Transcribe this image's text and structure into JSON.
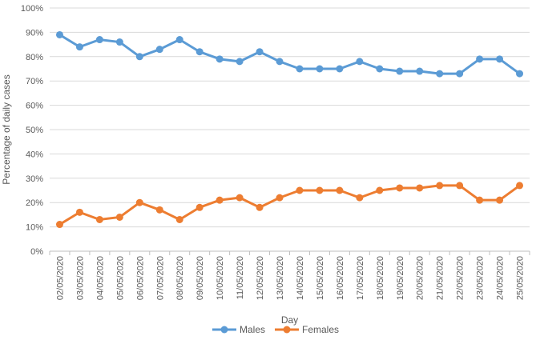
{
  "chart_data": {
    "type": "line",
    "title": "",
    "xlabel": "Day",
    "ylabel": "Percentage  of daily cases",
    "ylim": [
      0,
      100
    ],
    "y_ticks": [
      "0%",
      "10%",
      "20%",
      "30%",
      "40%",
      "50%",
      "60%",
      "70%",
      "80%",
      "90%",
      "100%"
    ],
    "grid": true,
    "legend_position": "bottom",
    "categories": [
      "02/05/2020",
      "03/05/2020",
      "04/05/2020",
      "05/05/2020",
      "06/05/2020",
      "07/05/2020",
      "08/05/2020",
      "09/05/2020",
      "10/05/2020",
      "11/05/2020",
      "12/05/2020",
      "13/05/2020",
      "14/05/2020",
      "15/05/2020",
      "16/05/2020",
      "17/05/2020",
      "18/05/2020",
      "19/05/2020",
      "20/05/2020",
      "21/05/2020",
      "22/05/2020",
      "23/05/2020",
      "24/05/2020",
      "25/05/2020"
    ],
    "series": [
      {
        "name": "Males",
        "color": "#5b9bd5",
        "values": [
          89,
          84,
          87,
          86,
          80,
          83,
          87,
          82,
          79,
          78,
          82,
          78,
          75,
          75,
          75,
          78,
          75,
          74,
          74,
          73,
          73,
          79,
          79,
          73
        ]
      },
      {
        "name": "Females",
        "color": "#ed7d31",
        "values": [
          11,
          16,
          13,
          14,
          20,
          17,
          13,
          18,
          21,
          22,
          18,
          22,
          25,
          25,
          25,
          22,
          25,
          26,
          26,
          27,
          27,
          21,
          21,
          27
        ]
      }
    ]
  }
}
